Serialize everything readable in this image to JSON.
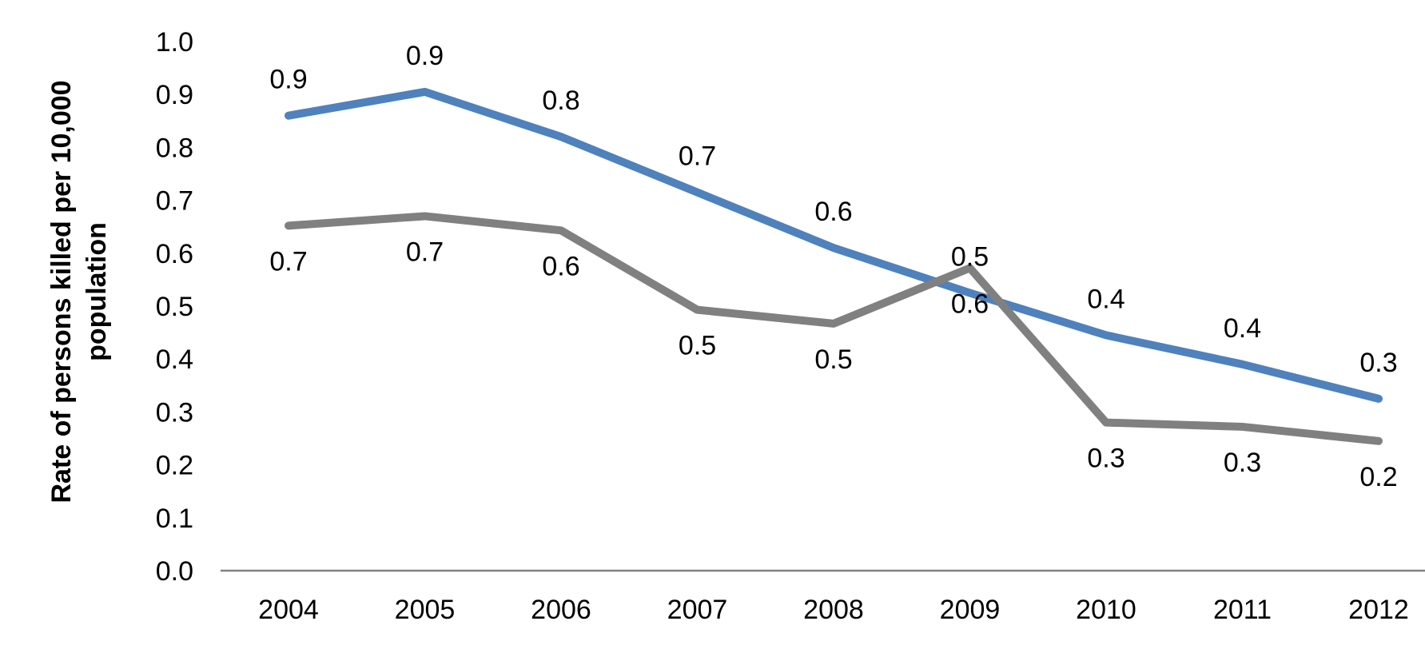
{
  "chart_data": {
    "type": "line",
    "title": "",
    "xlabel": "",
    "ylabel_lines": [
      "Rate of persons killed per 10,000",
      "population"
    ],
    "categories": [
      "2004",
      "2005",
      "2006",
      "2007",
      "2008",
      "2009",
      "2010",
      "2011",
      "2012"
    ],
    "ylim": [
      0,
      1.0
    ],
    "yticks": [
      "0.0",
      "0.1",
      "0.2",
      "0.3",
      "0.4",
      "0.5",
      "0.6",
      "0.7",
      "0.8",
      "0.9",
      "1.0"
    ],
    "grid": false,
    "legend": "none",
    "series": [
      {
        "color": "#4f81bd",
        "values": [
          0.86,
          0.905,
          0.82,
          0.715,
          0.61,
          0.525,
          0.445,
          0.39,
          0.325
        ],
        "labels": [
          "0.9",
          "0.9",
          "0.8",
          "0.7",
          "0.6",
          "0.5",
          "0.4",
          "0.4",
          "0.3"
        ],
        "label_position": "above"
      },
      {
        "color": "#808080",
        "values": [
          0.652,
          0.67,
          0.643,
          0.493,
          0.467,
          0.572,
          0.28,
          0.272,
          0.245
        ],
        "labels": [
          "0.7",
          "0.7",
          "0.6",
          "0.5",
          "0.5",
          "0.6",
          "0.3",
          "0.3",
          "0.2"
        ],
        "label_position": "below"
      }
    ],
    "axis_color": "#808080"
  }
}
